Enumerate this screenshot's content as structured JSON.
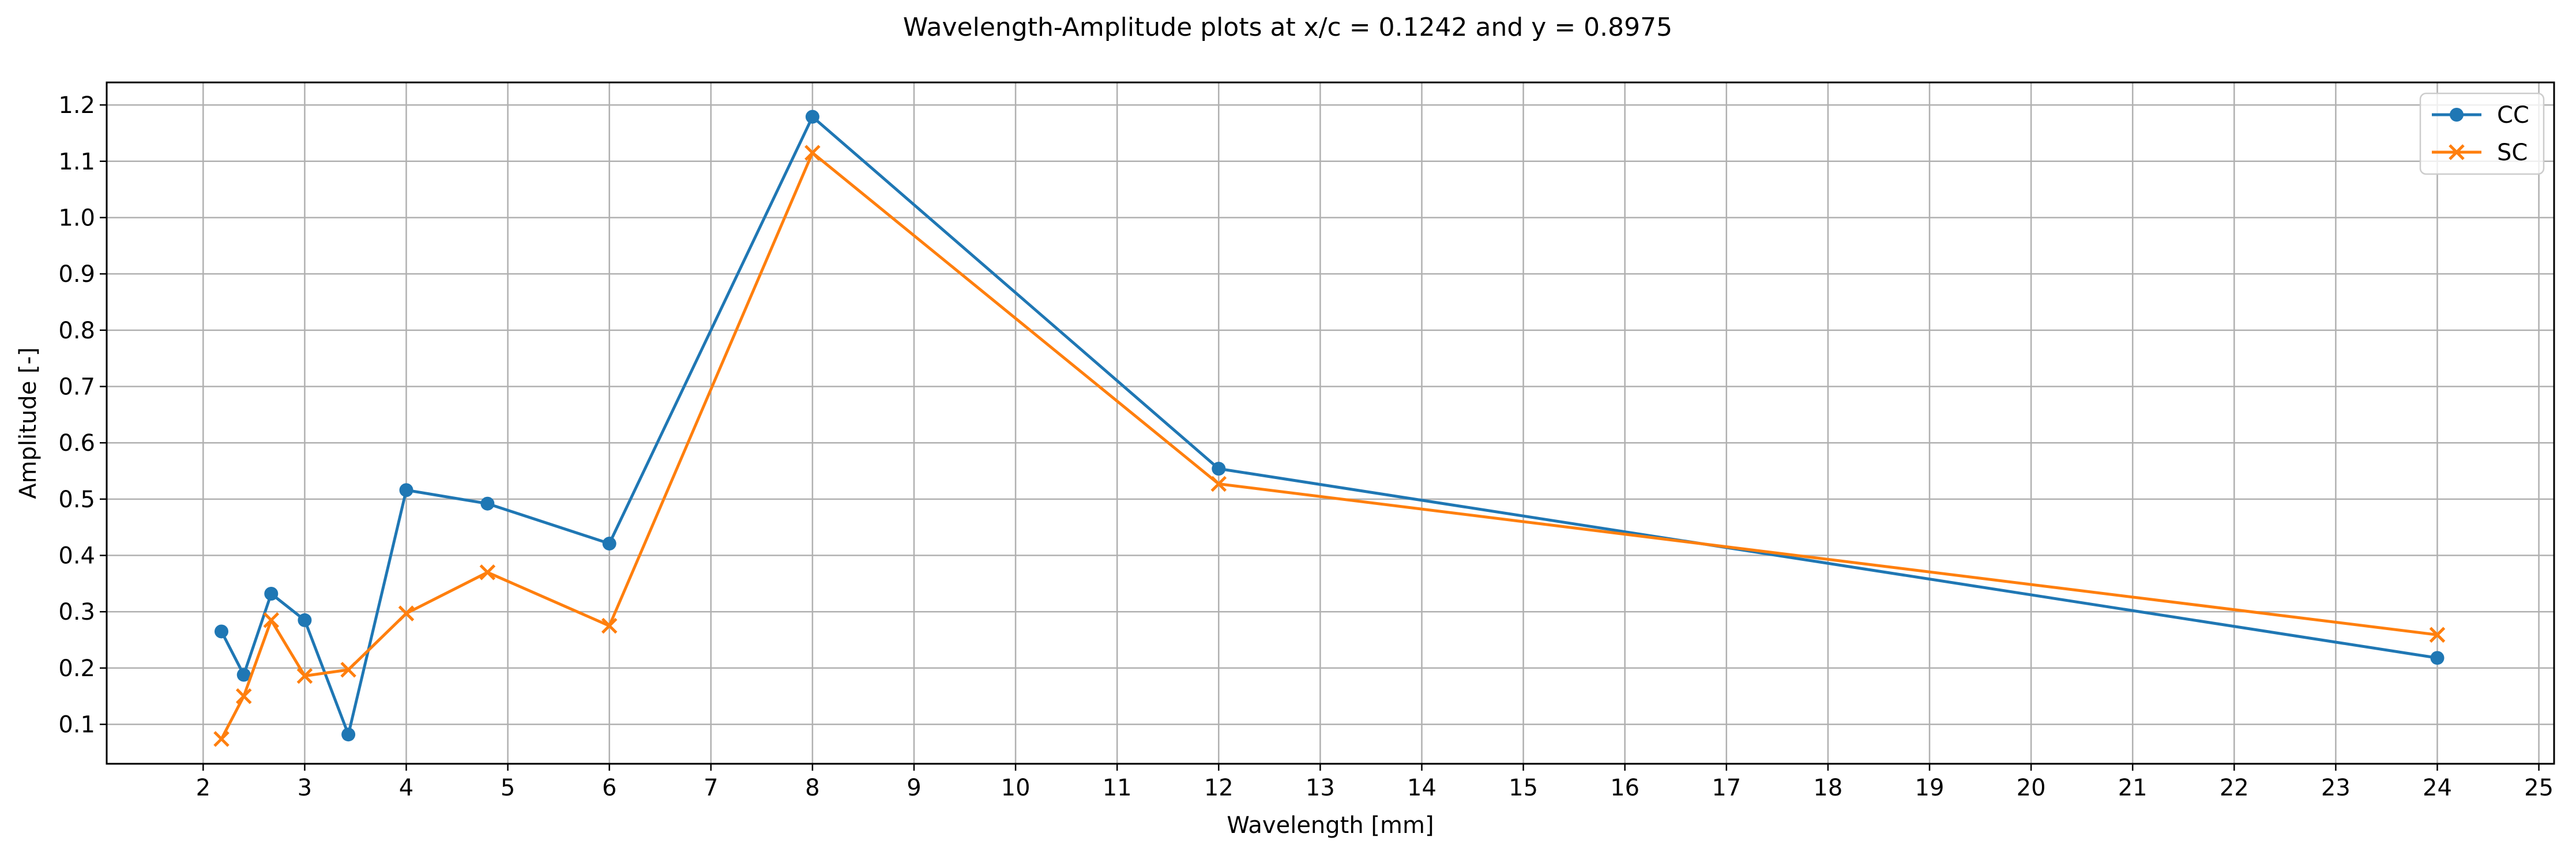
{
  "chart_data": {
    "type": "line",
    "title": "Wavelength-Amplitude plots at x/c = 0.1242 and y = 0.8975",
    "xlabel": "Wavelength [mm]",
    "ylabel": "Amplitude [-]",
    "xlim": [
      1.05,
      25.15
    ],
    "ylim": [
      0.03,
      1.24
    ],
    "xticks": [
      2,
      3,
      4,
      5,
      6,
      7,
      8,
      9,
      10,
      11,
      12,
      13,
      14,
      15,
      16,
      17,
      18,
      19,
      20,
      21,
      22,
      23,
      24,
      25
    ],
    "yticks": [
      0.1,
      0.2,
      0.3,
      0.4,
      0.5,
      0.6,
      0.7,
      0.8,
      0.9,
      1.0,
      1.1,
      1.2
    ],
    "ytick_labels": [
      "0.1",
      "0.2",
      "0.3",
      "0.4",
      "0.5",
      "0.6",
      "0.7",
      "0.8",
      "0.9",
      "1.0",
      "1.1",
      "1.2"
    ],
    "grid": true,
    "legend_position": "top-right",
    "series": [
      {
        "name": "CC",
        "color": "#1f77b4",
        "marker": "circle",
        "x": [
          2.18,
          2.4,
          2.67,
          3.0,
          3.43,
          4.0,
          4.8,
          6.0,
          8.0,
          12.0,
          24.0
        ],
        "y": [
          0.265,
          0.188,
          0.332,
          0.285,
          0.082,
          0.516,
          0.492,
          0.421,
          1.179,
          0.554,
          0.218
        ]
      },
      {
        "name": "SC",
        "color": "#ff7f0e",
        "marker": "x",
        "x": [
          2.18,
          2.4,
          2.67,
          3.0,
          3.43,
          4.0,
          4.8,
          6.0,
          8.0,
          12.0,
          24.0
        ],
        "y": [
          0.074,
          0.15,
          0.285,
          0.186,
          0.197,
          0.297,
          0.37,
          0.275,
          1.115,
          0.527,
          0.259
        ]
      }
    ]
  }
}
